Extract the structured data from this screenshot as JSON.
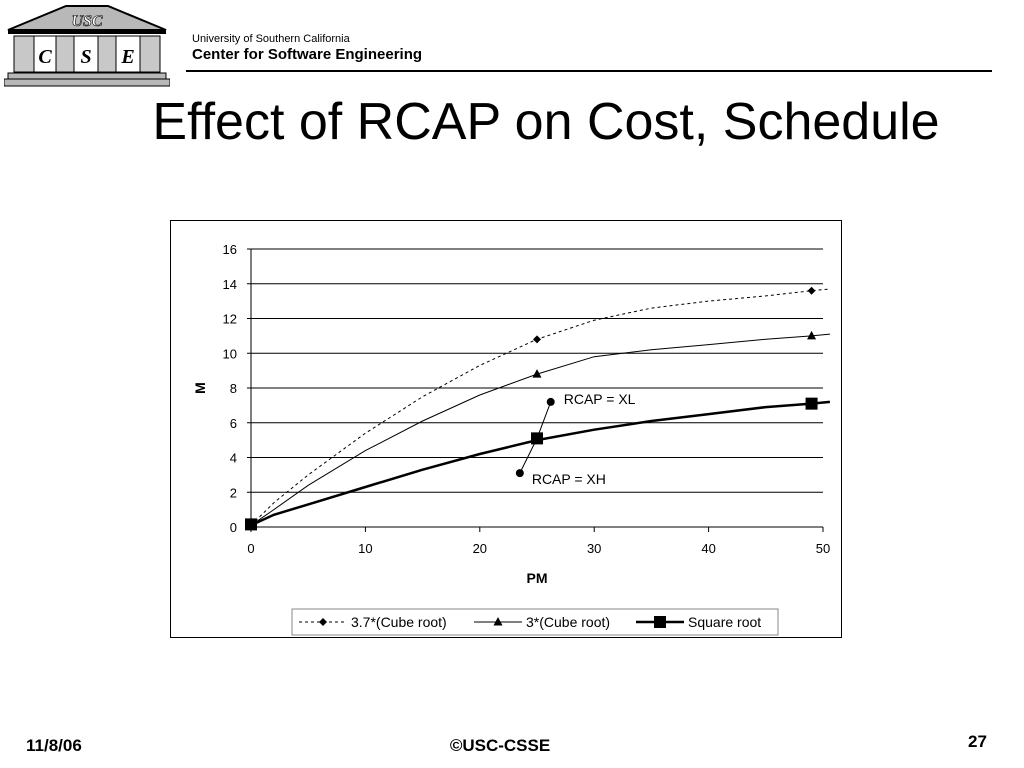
{
  "header": {
    "logo_banner": "USC",
    "logo_letters": [
      "C",
      "S",
      "E"
    ],
    "university": "University of Southern California",
    "center": "Center for Software  Engineering"
  },
  "slide": {
    "title": "Effect of RCAP on Cost, Schedule"
  },
  "footer": {
    "date": "11/8/06",
    "copyright": "©USC-CSSE",
    "page": "27"
  },
  "chart_data": {
    "type": "line",
    "title": "",
    "xlabel": "PM",
    "ylabel": "M",
    "xlim": [
      0,
      50
    ],
    "ylim": [
      0,
      16
    ],
    "x_ticks": [
      0,
      10,
      20,
      30,
      40,
      50
    ],
    "y_ticks": [
      0,
      2,
      4,
      6,
      8,
      10,
      12,
      14,
      16
    ],
    "grid": "horizontal",
    "legend_position": "bottom",
    "x": [
      0,
      2,
      5,
      10,
      15,
      20,
      25,
      30,
      35,
      40,
      45,
      49,
      50.6
    ],
    "series": [
      {
        "name": "3.7*(Cube root)",
        "style": "dotted",
        "marker": "diamond",
        "values": [
          0.1,
          1.4,
          3.0,
          5.4,
          7.5,
          9.3,
          10.8,
          11.9,
          12.6,
          13.0,
          13.3,
          13.6,
          13.7
        ],
        "marker_points": [
          [
            0,
            0.1
          ],
          [
            25,
            10.8
          ],
          [
            49,
            13.6
          ]
        ]
      },
      {
        "name": "3*(Cube root)",
        "style": "thin",
        "marker": "triangle",
        "values": [
          0.1,
          1.0,
          2.4,
          4.4,
          6.1,
          7.6,
          8.8,
          9.8,
          10.2,
          10.5,
          10.8,
          11.0,
          11.1
        ],
        "marker_points": [
          [
            0,
            0.1
          ],
          [
            25,
            8.8
          ],
          [
            49,
            11.0
          ]
        ]
      },
      {
        "name": "Square root",
        "style": "thick",
        "marker": "square",
        "values": [
          0.1,
          0.7,
          1.3,
          2.3,
          3.3,
          4.2,
          5.0,
          5.6,
          6.1,
          6.5,
          6.9,
          7.1,
          7.2
        ],
        "marker_points": [
          [
            0,
            0.15
          ],
          [
            25,
            5.1
          ],
          [
            49,
            7.1
          ]
        ]
      }
    ],
    "annotations": [
      {
        "text": "RCAP = XL",
        "from": [
          25,
          5.1
        ],
        "to": [
          26.2,
          7.2
        ]
      },
      {
        "text": "RCAP = XH",
        "from": [
          25,
          5.1
        ],
        "to": [
          23.5,
          3.1
        ]
      }
    ]
  }
}
